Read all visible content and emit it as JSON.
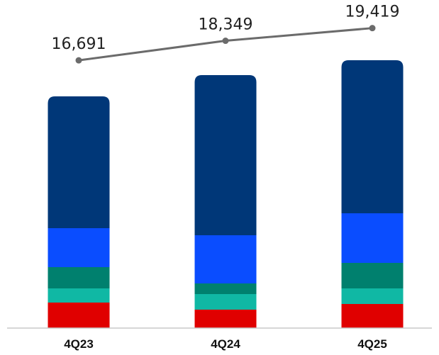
{
  "chart_data": {
    "type": "bar",
    "stacked": true,
    "categories": [
      "4Q23",
      "4Q24",
      "4Q25"
    ],
    "series": [
      {
        "color": "#e00000",
        "values": [
          36,
          26,
          34
        ]
      },
      {
        "color": "#10b8a4",
        "values": [
          20,
          22,
          22
        ]
      },
      {
        "color": "#00806e",
        "values": [
          30,
          15,
          36
        ]
      },
      {
        "color": "#0a4dff",
        "values": [
          55,
          68,
          70
        ]
      },
      {
        "color": "#003778",
        "values": [
          186,
          226,
          216
        ]
      }
    ],
    "totals": {
      "type": "line",
      "color": "#6b6b6b",
      "values": [
        16691,
        18349,
        19419
      ],
      "labels": [
        "16,691",
        "18,349",
        "19,419"
      ]
    },
    "ylim": [
      0,
      380
    ],
    "grid": false,
    "legend": "none"
  }
}
